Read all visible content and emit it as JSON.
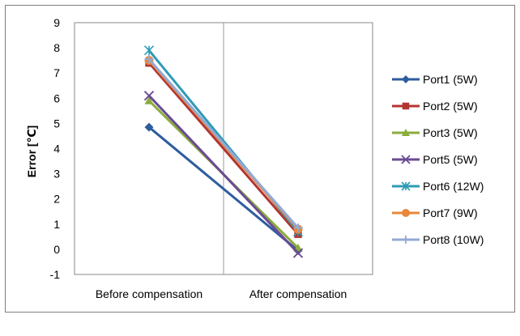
{
  "chart_data": {
    "type": "line",
    "title": "",
    "xlabel": "",
    "ylabel": "Error [℃]",
    "categories": [
      "Before compensation",
      "After compensation"
    ],
    "ylim": [
      -1,
      9
    ],
    "yticks": [
      -1,
      0,
      1,
      2,
      3,
      4,
      5,
      6,
      7,
      8,
      9
    ],
    "grid": "vertical",
    "legend_position": "right",
    "series": [
      {
        "name": "Port1 (5W)",
        "values": [
          4.85,
          -0.05
        ],
        "color": "#2e5c9e",
        "marker": "diamond"
      },
      {
        "name": "Port2 (5W)",
        "values": [
          7.4,
          0.6
        ],
        "color": "#b33530",
        "marker": "square"
      },
      {
        "name": "Port3 (5W)",
        "values": [
          5.9,
          0.05
        ],
        "color": "#8aad3b",
        "marker": "triangle"
      },
      {
        "name": "Port5 (5W)",
        "values": [
          6.1,
          -0.15
        ],
        "color": "#6a4a94",
        "marker": "x"
      },
      {
        "name": "Port6 (12W)",
        "values": [
          7.9,
          0.7
        ],
        "color": "#2f9bb5",
        "marker": "star"
      },
      {
        "name": "Port7 (9W)",
        "values": [
          7.5,
          0.8
        ],
        "color": "#e8873a",
        "marker": "circle"
      },
      {
        "name": "Port8 (10W)",
        "values": [
          7.55,
          0.85
        ],
        "color": "#93a9d6",
        "marker": "plus"
      }
    ]
  }
}
